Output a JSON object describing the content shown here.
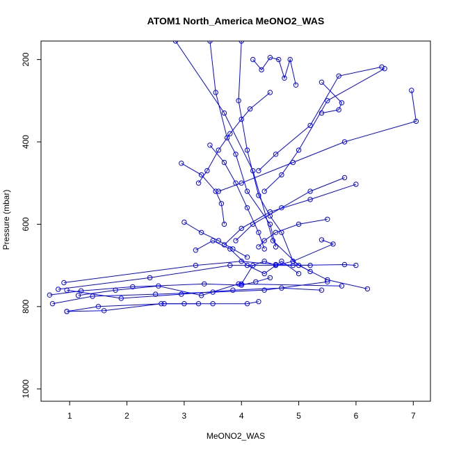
{
  "chart_data": {
    "type": "line",
    "title": "ATOM1 North_America MeONO2_WAS",
    "xlabel": "MeONO2_WAS",
    "ylabel": "Pressure (mbar)",
    "xlim": [
      0.5,
      7.3
    ],
    "ylim": [
      1030,
      155
    ],
    "y_reversed": true,
    "x_ticks": [
      1,
      2,
      3,
      4,
      5,
      6,
      7
    ],
    "y_ticks": [
      200,
      400,
      600,
      800,
      1000
    ],
    "grid": false,
    "legend": "none",
    "marker": "open-circle",
    "color": "#0000ff",
    "series": [
      {
        "x": [
          2.85,
          3.7,
          4.2,
          4.55,
          5.0,
          5.5,
          6.2
        ],
        "y": [
          155,
          330,
          470,
          640,
          700,
          735,
          757
        ]
      },
      {
        "x": [
          3.45,
          3.55,
          3.75,
          3.9,
          4.1,
          4.5,
          4.6
        ],
        "y": [
          155,
          280,
          390,
          430,
          520,
          600,
          655
        ]
      },
      {
        "x": [
          4.0,
          3.95,
          4.1,
          4.3,
          4.5,
          4.7,
          4.9,
          5.2
        ],
        "y": [
          155,
          300,
          420,
          530,
          580,
          620,
          690,
          715
        ]
      },
      {
        "x": [
          4.2,
          4.35,
          4.5,
          4.65,
          4.75,
          4.85,
          4.95
        ],
        "y": [
          200,
          225,
          195,
          200,
          245,
          200,
          262
        ]
      },
      {
        "x": [
          4.5,
          4.15,
          4.0,
          3.8,
          3.6,
          3.4,
          3.25
        ],
        "y": [
          280,
          320,
          345,
          380,
          420,
          470,
          500
        ]
      },
      {
        "x": [
          5.4,
          5.75,
          5.7,
          5.4
        ],
        "y": [
          255,
          305,
          322,
          330
        ]
      },
      {
        "x": [
          6.45,
          5.7,
          5.2,
          4.6,
          4.3
        ],
        "y": [
          218,
          240,
          360,
          430,
          470
        ]
      },
      {
        "x": [
          6.5,
          5.5,
          5.0,
          4.7,
          4.4
        ],
        "y": [
          222,
          300,
          420,
          480,
          520
        ]
      },
      {
        "x": [
          6.97,
          7.05,
          5.8,
          4.9,
          4.0,
          3.6
        ],
        "y": [
          275,
          350,
          400,
          450,
          500,
          520
        ]
      },
      {
        "x": [
          2.95,
          3.3,
          3.55,
          3.65,
          3.7
        ],
        "y": [
          452,
          480,
          520,
          550,
          600
        ]
      },
      {
        "x": [
          3.45,
          3.7,
          3.9,
          4.1,
          4.3,
          4.4
        ],
        "y": [
          408,
          450,
          500,
          560,
          620,
          660
        ]
      },
      {
        "x": [
          6.0,
          5.2,
          4.5,
          4.0,
          3.7
        ],
        "y": [
          503,
          540,
          570,
          610,
          650
        ]
      },
      {
        "x": [
          5.8,
          5.2,
          4.7,
          4.2,
          3.9
        ],
        "y": [
          487,
          520,
          560,
          600,
          640
        ]
      },
      {
        "x": [
          3.0,
          3.3,
          3.6,
          3.85,
          4.1
        ],
        "y": [
          595,
          620,
          640,
          660,
          680
        ]
      },
      {
        "x": [
          5.5,
          5.0,
          4.6,
          4.4,
          4.3
        ],
        "y": [
          588,
          600,
          620,
          640,
          655
        ]
      },
      {
        "x": [
          3.2,
          3.5,
          3.8,
          4.1,
          4.4,
          4.7,
          5.0
        ],
        "y": [
          663,
          640,
          660,
          700,
          720,
          690,
          720
        ]
      },
      {
        "x": [
          5.4,
          5.6,
          4.9,
          4.6,
          4.4,
          4.2,
          4.0
        ],
        "y": [
          638,
          648,
          690,
          700,
          690,
          700,
          745
        ]
      },
      {
        "x": [
          0.9,
          3.2,
          4.0,
          4.6,
          5.2
        ],
        "y": [
          742,
          700,
          690,
          698,
          700
        ]
      },
      {
        "x": [
          0.8,
          2.4,
          3.8,
          4.9,
          5.8,
          6.0
        ],
        "y": [
          758,
          730,
          700,
          700,
          698,
          700
        ]
      },
      {
        "x": [
          0.65,
          1.2,
          2.1,
          3.35,
          4.0,
          4.25,
          4.5
        ],
        "y": [
          772,
          762,
          752,
          745,
          748,
          740,
          730
        ]
      },
      {
        "x": [
          0.7,
          1.4,
          2.5,
          3.5,
          4.4,
          5.5
        ],
        "y": [
          793,
          775,
          770,
          765,
          760,
          740
        ]
      },
      {
        "x": [
          0.95,
          1.9,
          2.95,
          3.85,
          4.7,
          5.4
        ],
        "y": [
          760,
          780,
          770,
          760,
          755,
          760
        ]
      },
      {
        "x": [
          1.15,
          1.8,
          2.55,
          3.3,
          3.95,
          5.75
        ],
        "y": [
          773,
          760,
          750,
          773,
          745,
          750
        ]
      },
      {
        "x": [
          0.95,
          1.6,
          2.6,
          3.0,
          3.5,
          4.1,
          4.3
        ],
        "y": [
          812,
          810,
          793,
          793,
          793,
          793,
          788
        ]
      },
      {
        "x": [
          0.95,
          1.5,
          2.65,
          3.25
        ],
        "y": [
          812,
          800,
          793,
          793
        ]
      }
    ]
  }
}
